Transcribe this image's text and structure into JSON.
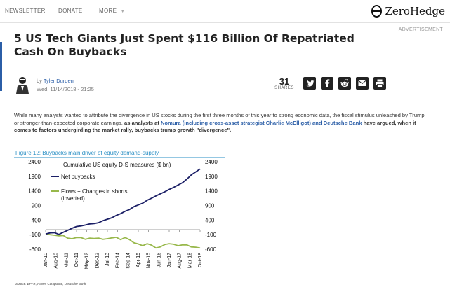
{
  "nav": {
    "items": [
      "NEWSLETTER",
      "DONATE",
      "MORE"
    ],
    "logo_text": "ZeroHedge",
    "advertisement": "ADVERTISEMENT"
  },
  "article": {
    "title": "5 US Tech Giants Just Spent $116 Billion Of Repatriated Cash On Buybacks",
    "byline_prefix": "by",
    "author": "Tyler Durden",
    "date": "Wed, 11/14/2018 - 21:25",
    "share_count": "31",
    "share_label": "SHARES",
    "share_icons": [
      "twitter-icon",
      "facebook-icon",
      "reddit-icon",
      "email-icon",
      "print-icon"
    ],
    "paragraph": {
      "part1": "While many analysts wanted to attribute the divergence in US stocks during the first three months of this year to strong economic data, the fiscal stimulus unleashed by Trump or stronger-than-expected corporate earnings, ",
      "part2": "as analysts at ",
      "link": "Nomura (including cross-asset strategist Charlie McElligot) and Deutsche Bank",
      "part3": " have argued, when it comes to factors undergirding the market rally, buybacks trump growth \"divergence\"."
    }
  },
  "chart_data": {
    "type": "line",
    "figure_caption": "Figure 12: Buybacks main driver of equity demand-supply",
    "title": "Cumulative US equity D-S measures ($ bn)",
    "source": "Source: EPFR, Haver, Compustat, Deutsche Bank",
    "x_ticks": [
      "Jan-10",
      "Aug-10",
      "Mar-11",
      "Oct-11",
      "May-12",
      "Dec-12",
      "Jul-13",
      "Feb-14",
      "Sep-14",
      "Apr-15",
      "Nov-15",
      "Jun-16",
      "Jan-17",
      "Aug-17",
      "Mar-18",
      "Oct-18"
    ],
    "y_ticks": [
      "2400",
      "1900",
      "1400",
      "900",
      "400",
      "-100",
      "-600"
    ],
    "ylim": [
      -600,
      2400
    ],
    "colors": {
      "caption": "#2a8fc4",
      "net": "#1b1f66",
      "flows": "#98b84b"
    },
    "series": [
      {
        "name": "Net buybacks",
        "values": [
          -80,
          -40,
          -30,
          -90,
          -20,
          50,
          120,
          180,
          200,
          230,
          270,
          280,
          310,
          380,
          430,
          480,
          560,
          620,
          700,
          760,
          860,
          920,
          980,
          1080,
          1150,
          1230,
          1300,
          1370,
          1450,
          1520,
          1600,
          1680,
          1800,
          1950,
          2050,
          2150
        ]
      },
      {
        "name": "Flows + Changes in shorts\n(inverted)",
        "values": [
          -80,
          -100,
          -120,
          -140,
          -130,
          -220,
          -240,
          -200,
          -200,
          -260,
          -220,
          -230,
          -220,
          -260,
          -240,
          -210,
          -190,
          -270,
          -200,
          -270,
          -380,
          -420,
          -480,
          -410,
          -460,
          -560,
          -520,
          -440,
          -410,
          -430,
          -480,
          -450,
          -450,
          -520,
          -530,
          -560
        ]
      }
    ]
  }
}
